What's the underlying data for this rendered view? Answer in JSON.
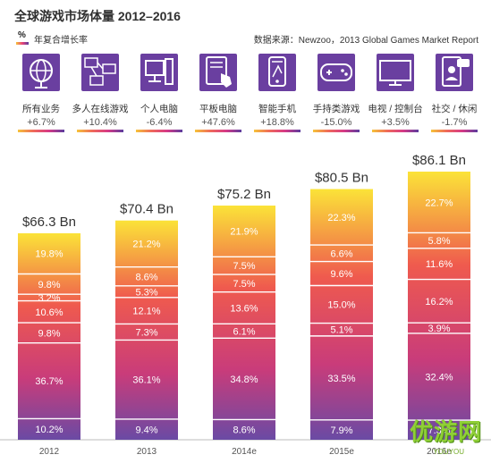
{
  "title": "全球游戏市场体量 2012–2016",
  "legend": {
    "symbol": "%",
    "text": "年复合增长率"
  },
  "source": "数据来源：Newzoo，2013 Global Games Market Report",
  "categories": [
    {
      "label": "所有业务",
      "growth": "+6.7%",
      "icon": "globe-icon"
    },
    {
      "label": "多人在线游戏",
      "growth": "+10.4%",
      "icon": "network-computers-icon"
    },
    {
      "label": "个人电脑",
      "growth": "-6.4%",
      "icon": "desktop-computer-icon"
    },
    {
      "label": "平板电脑",
      "growth": "+47.6%",
      "icon": "tablet-touch-icon"
    },
    {
      "label": "智能手机",
      "growth": "+18.8%",
      "icon": "smartphone-icon"
    },
    {
      "label": "手持类游戏",
      "growth": "-15.0%",
      "icon": "handheld-console-icon"
    },
    {
      "label": "电视 / 控制台",
      "growth": "+3.5%",
      "icon": "tv-icon"
    },
    {
      "label": "社交 / 休闲",
      "growth": "-1.7%",
      "icon": "social-user-icon"
    }
  ],
  "chart_data": {
    "type": "bar",
    "stacked": true,
    "unit": "%",
    "categories": [
      "2012",
      "2013",
      "2014e",
      "2015e",
      "2016e"
    ],
    "totals": [
      "$66.3 Bn",
      "$70.4 Bn",
      "$75.2 Bn",
      "$80.5 Bn",
      "$86.1 Bn"
    ],
    "total_values": [
      66.3,
      70.4,
      75.2,
      80.5,
      86.1
    ],
    "series_bottom_to_top": [
      [
        10.2,
        36.7,
        9.8,
        10.6,
        3.2,
        9.8,
        19.8
      ],
      [
        9.4,
        36.1,
        7.3,
        12.1,
        5.3,
        8.6,
        21.2
      ],
      [
        8.6,
        34.8,
        6.1,
        13.6,
        7.5,
        7.5,
        21.9
      ],
      [
        7.9,
        33.5,
        5.1,
        15.0,
        9.6,
        6.6,
        22.3
      ],
      [
        7.3,
        32.4,
        3.9,
        16.2,
        11.6,
        5.8,
        22.7
      ]
    ],
    "colors": {
      "top": "#fbe338",
      "mid": "#ef5a4e",
      "low": "#c93c7a",
      "bottom": "#6a4aa4"
    }
  },
  "watermark": {
    "main": "优游网",
    "sub": "YOUYOU"
  }
}
